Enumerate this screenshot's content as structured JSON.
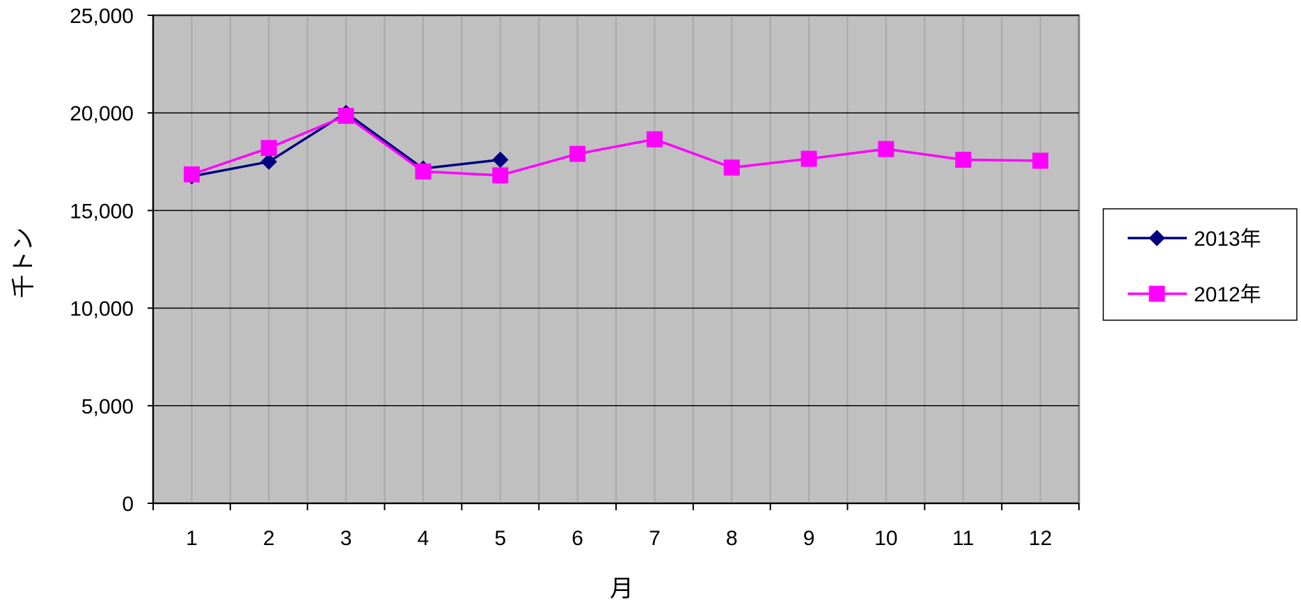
{
  "chart_data": {
    "type": "line",
    "xlabel": "月",
    "ylabel": "千トン",
    "categories": [
      "1",
      "2",
      "3",
      "4",
      "5",
      "6",
      "7",
      "8",
      "9",
      "10",
      "11",
      "12"
    ],
    "ylim": [
      0,
      25000
    ],
    "yticks": [
      0,
      5000,
      10000,
      15000,
      20000,
      25000
    ],
    "ytick_labels": [
      "0",
      "5,000",
      "10,000",
      "15,000",
      "20,000",
      "25,000"
    ],
    "grid": true,
    "legend_position": "right",
    "plot_background": "#c0c0c0",
    "series": [
      {
        "name": "2013年",
        "color": "#000080",
        "marker": "diamond",
        "values": [
          16750,
          17500,
          20000,
          17150,
          17600,
          null,
          null,
          null,
          null,
          null,
          null,
          null
        ]
      },
      {
        "name": "2012年",
        "color": "#ff00ff",
        "marker": "square",
        "values": [
          16850,
          18200,
          19850,
          17000,
          16800,
          17900,
          18650,
          17200,
          17650,
          18150,
          17600,
          17550
        ]
      }
    ]
  }
}
